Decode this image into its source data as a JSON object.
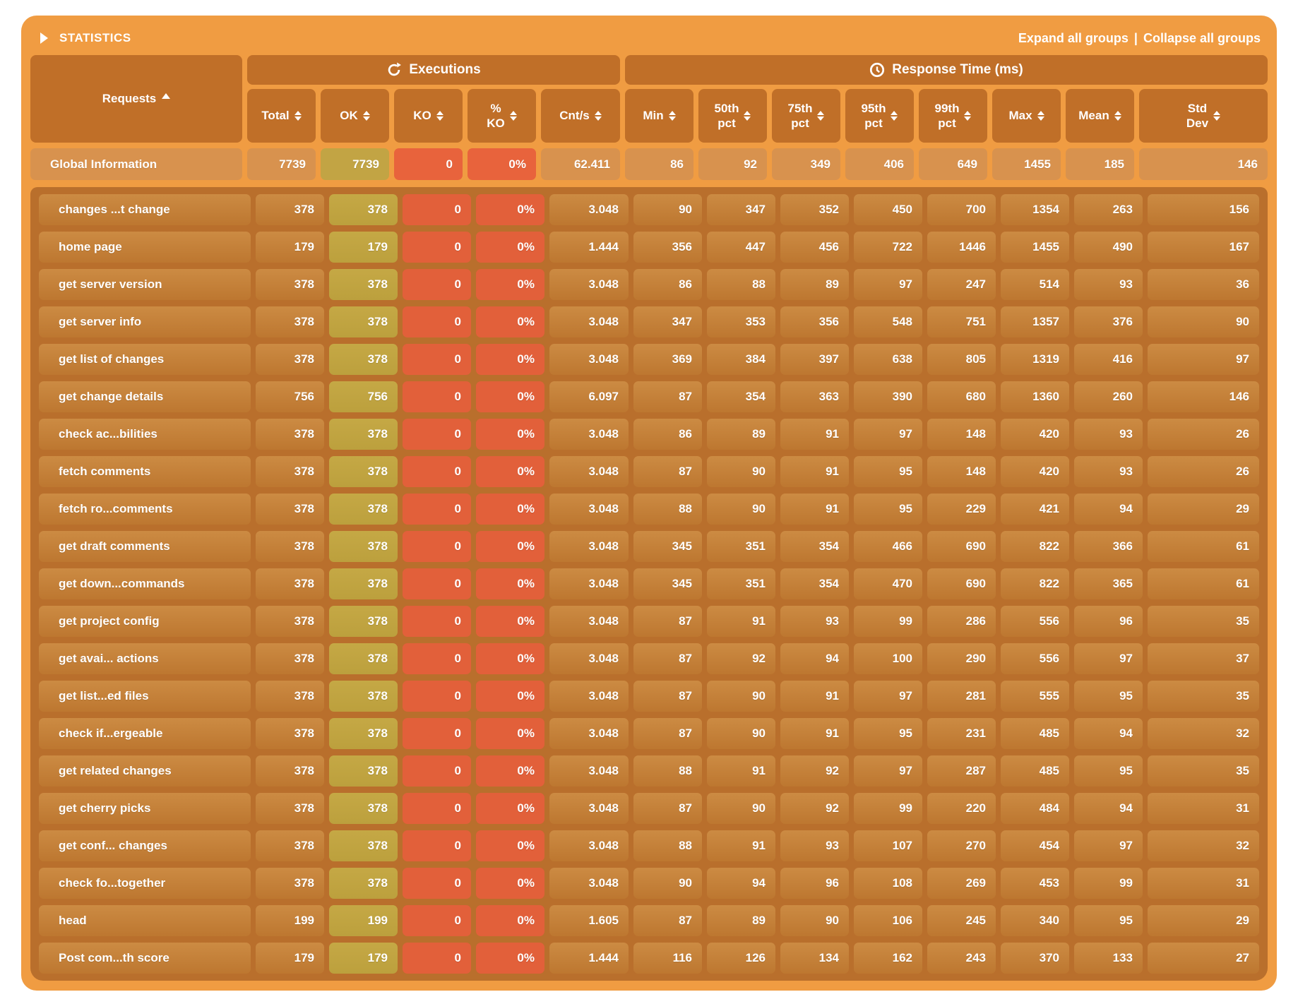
{
  "panel": {
    "title": "STATISTICS",
    "expand_label": "Expand all groups",
    "separator": "|",
    "collapse_label": "Collapse all groups"
  },
  "colors": {
    "container": "#F09C42",
    "hdr": "#C06F28",
    "panel": "#B96F2C",
    "globalcell": "#D8924E",
    "okglobal": "#C2A444",
    "ko": "#E8633C",
    "okrow": "#BCA03D",
    "korow": "#E2603A"
  },
  "table": {
    "requests_header": "Requests",
    "groups": [
      {
        "label": "Executions",
        "icon": "refresh-icon"
      },
      {
        "label": "Response Time (ms)",
        "icon": "clock-icon"
      }
    ],
    "columns": [
      "Total",
      "OK",
      "KO",
      "%\nKO",
      "Cnt/s",
      "Min",
      "50th\npct",
      "75th\npct",
      "95th\npct",
      "99th\npct",
      "Max",
      "Mean",
      "Std\nDev"
    ],
    "global_row": {
      "name": "Global Information",
      "values": [
        "7739",
        "7739",
        "0",
        "0%",
        "62.411",
        "86",
        "92",
        "349",
        "406",
        "649",
        "1455",
        "185",
        "146"
      ]
    },
    "rows": [
      {
        "name": "changes ...t change",
        "values": [
          "378",
          "378",
          "0",
          "0%",
          "3.048",
          "90",
          "347",
          "352",
          "450",
          "700",
          "1354",
          "263",
          "156"
        ]
      },
      {
        "name": "home page",
        "values": [
          "179",
          "179",
          "0",
          "0%",
          "1.444",
          "356",
          "447",
          "456",
          "722",
          "1446",
          "1455",
          "490",
          "167"
        ]
      },
      {
        "name": "get server version",
        "values": [
          "378",
          "378",
          "0",
          "0%",
          "3.048",
          "86",
          "88",
          "89",
          "97",
          "247",
          "514",
          "93",
          "36"
        ]
      },
      {
        "name": "get server info",
        "values": [
          "378",
          "378",
          "0",
          "0%",
          "3.048",
          "347",
          "353",
          "356",
          "548",
          "751",
          "1357",
          "376",
          "90"
        ]
      },
      {
        "name": "get list of changes",
        "values": [
          "378",
          "378",
          "0",
          "0%",
          "3.048",
          "369",
          "384",
          "397",
          "638",
          "805",
          "1319",
          "416",
          "97"
        ]
      },
      {
        "name": "get change details",
        "values": [
          "756",
          "756",
          "0",
          "0%",
          "6.097",
          "87",
          "354",
          "363",
          "390",
          "680",
          "1360",
          "260",
          "146"
        ]
      },
      {
        "name": "check ac...bilities",
        "values": [
          "378",
          "378",
          "0",
          "0%",
          "3.048",
          "86",
          "89",
          "91",
          "97",
          "148",
          "420",
          "93",
          "26"
        ]
      },
      {
        "name": "fetch comments",
        "values": [
          "378",
          "378",
          "0",
          "0%",
          "3.048",
          "87",
          "90",
          "91",
          "95",
          "148",
          "420",
          "93",
          "26"
        ]
      },
      {
        "name": "fetch ro...comments",
        "values": [
          "378",
          "378",
          "0",
          "0%",
          "3.048",
          "88",
          "90",
          "91",
          "95",
          "229",
          "421",
          "94",
          "29"
        ]
      },
      {
        "name": "get draft comments",
        "values": [
          "378",
          "378",
          "0",
          "0%",
          "3.048",
          "345",
          "351",
          "354",
          "466",
          "690",
          "822",
          "366",
          "61"
        ]
      },
      {
        "name": "get down...commands",
        "values": [
          "378",
          "378",
          "0",
          "0%",
          "3.048",
          "345",
          "351",
          "354",
          "470",
          "690",
          "822",
          "365",
          "61"
        ]
      },
      {
        "name": "get project config",
        "values": [
          "378",
          "378",
          "0",
          "0%",
          "3.048",
          "87",
          "91",
          "93",
          "99",
          "286",
          "556",
          "96",
          "35"
        ]
      },
      {
        "name": "get avai... actions",
        "values": [
          "378",
          "378",
          "0",
          "0%",
          "3.048",
          "87",
          "92",
          "94",
          "100",
          "290",
          "556",
          "97",
          "37"
        ]
      },
      {
        "name": "get list...ed files",
        "values": [
          "378",
          "378",
          "0",
          "0%",
          "3.048",
          "87",
          "90",
          "91",
          "97",
          "281",
          "555",
          "95",
          "35"
        ]
      },
      {
        "name": "check if...ergeable",
        "values": [
          "378",
          "378",
          "0",
          "0%",
          "3.048",
          "87",
          "90",
          "91",
          "95",
          "231",
          "485",
          "94",
          "32"
        ]
      },
      {
        "name": "get related changes",
        "values": [
          "378",
          "378",
          "0",
          "0%",
          "3.048",
          "88",
          "91",
          "92",
          "97",
          "287",
          "485",
          "95",
          "35"
        ]
      },
      {
        "name": "get cherry picks",
        "values": [
          "378",
          "378",
          "0",
          "0%",
          "3.048",
          "87",
          "90",
          "92",
          "99",
          "220",
          "484",
          "94",
          "31"
        ]
      },
      {
        "name": "get conf... changes",
        "values": [
          "378",
          "378",
          "0",
          "0%",
          "3.048",
          "88",
          "91",
          "93",
          "107",
          "270",
          "454",
          "97",
          "32"
        ]
      },
      {
        "name": "check fo...together",
        "values": [
          "378",
          "378",
          "0",
          "0%",
          "3.048",
          "90",
          "94",
          "96",
          "108",
          "269",
          "453",
          "99",
          "31"
        ]
      },
      {
        "name": "head",
        "values": [
          "199",
          "199",
          "0",
          "0%",
          "1.605",
          "87",
          "89",
          "90",
          "106",
          "245",
          "340",
          "95",
          "29"
        ]
      },
      {
        "name": "Post com...th score",
        "values": [
          "179",
          "179",
          "0",
          "0%",
          "1.444",
          "116",
          "126",
          "134",
          "162",
          "243",
          "370",
          "133",
          "27"
        ]
      }
    ]
  }
}
